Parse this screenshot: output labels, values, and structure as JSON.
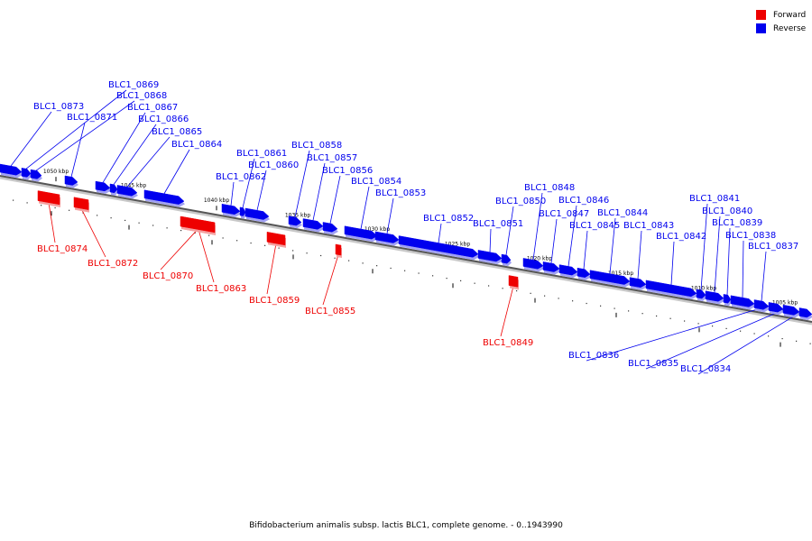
{
  "legend": {
    "forward": {
      "label": "Forward",
      "color": "#ee0000"
    },
    "reverse": {
      "label": "Reverse",
      "color": "#0000ee"
    }
  },
  "caption": "Bifidobacterium animalis subsp. lactis BLC1, complete genome. - 0..1943990",
  "ticks": [
    {
      "label": "1050 kbp",
      "pos_kbp": 1050
    },
    {
      "label": "1045 kbp",
      "pos_kbp": 1045
    },
    {
      "label": "1040 kbp",
      "pos_kbp": 1040
    },
    {
      "label": "1035 kbp",
      "pos_kbp": 1035
    },
    {
      "label": "1030 kbp",
      "pos_kbp": 1030
    },
    {
      "label": "1025 kbp",
      "pos_kbp": 1025
    },
    {
      "label": "1020 kbp",
      "pos_kbp": 1020
    },
    {
      "label": "1015 kbp",
      "pos_kbp": 1015
    },
    {
      "label": "1010 kbp",
      "pos_kbp": 1010
    },
    {
      "label": "1005 kbp",
      "pos_kbp": 1005
    }
  ],
  "genes": [
    {
      "name": "BLC1_0873",
      "strand": "reverse"
    },
    {
      "name": "BLC1_0874",
      "strand": "forward"
    },
    {
      "name": "BLC1_0872",
      "strand": "forward"
    },
    {
      "name": "BLC1_0871",
      "strand": "reverse"
    },
    {
      "name": "BLC1_0870",
      "strand": "forward"
    },
    {
      "name": "BLC1_0869",
      "strand": "reverse"
    },
    {
      "name": "BLC1_0868",
      "strand": "reverse"
    },
    {
      "name": "BLC1_0867",
      "strand": "reverse"
    },
    {
      "name": "BLC1_0866",
      "strand": "reverse"
    },
    {
      "name": "BLC1_0865",
      "strand": "reverse"
    },
    {
      "name": "BLC1_0864",
      "strand": "reverse"
    },
    {
      "name": "BLC1_0863",
      "strand": "forward"
    },
    {
      "name": "BLC1_0862",
      "strand": "reverse"
    },
    {
      "name": "BLC1_0861",
      "strand": "reverse"
    },
    {
      "name": "BLC1_0860",
      "strand": "reverse"
    },
    {
      "name": "BLC1_0859",
      "strand": "forward"
    },
    {
      "name": "BLC1_0858",
      "strand": "reverse"
    },
    {
      "name": "BLC1_0857",
      "strand": "reverse"
    },
    {
      "name": "BLC1_0856",
      "strand": "reverse"
    },
    {
      "name": "BLC1_0855",
      "strand": "forward"
    },
    {
      "name": "BLC1_0854",
      "strand": "reverse"
    },
    {
      "name": "BLC1_0853",
      "strand": "reverse"
    },
    {
      "name": "BLC1_0852",
      "strand": "reverse"
    },
    {
      "name": "BLC1_0851",
      "strand": "reverse"
    },
    {
      "name": "BLC1_0850",
      "strand": "reverse"
    },
    {
      "name": "BLC1_0849",
      "strand": "forward"
    },
    {
      "name": "BLC1_0848",
      "strand": "reverse"
    },
    {
      "name": "BLC1_0847",
      "strand": "reverse"
    },
    {
      "name": "BLC1_0846",
      "strand": "reverse"
    },
    {
      "name": "BLC1_0845",
      "strand": "reverse"
    },
    {
      "name": "BLC1_0844",
      "strand": "reverse"
    },
    {
      "name": "BLC1_0843",
      "strand": "reverse"
    },
    {
      "name": "BLC1_0842",
      "strand": "reverse"
    },
    {
      "name": "BLC1_0841",
      "strand": "reverse"
    },
    {
      "name": "BLC1_0840",
      "strand": "reverse"
    },
    {
      "name": "BLC1_0839",
      "strand": "reverse"
    },
    {
      "name": "BLC1_0838",
      "strand": "reverse"
    },
    {
      "name": "BLC1_0837",
      "strand": "reverse"
    },
    {
      "name": "BLC1_0836",
      "strand": "reverse"
    },
    {
      "name": "BLC1_0835",
      "strand": "reverse"
    },
    {
      "name": "BLC1_0834",
      "strand": "reverse"
    }
  ]
}
